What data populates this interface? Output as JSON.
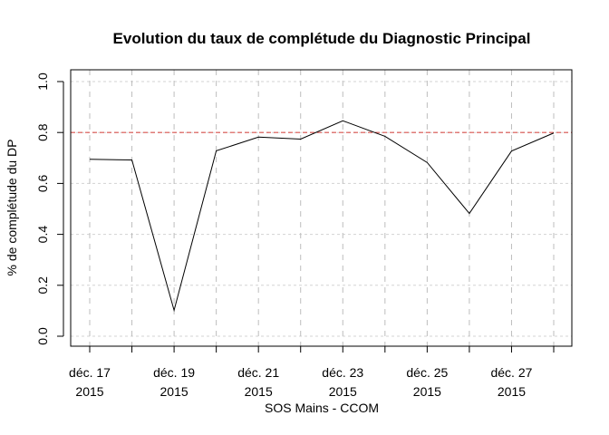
{
  "chart_data": {
    "type": "line",
    "title": "Evolution du taux de complétude du Diagnostic Principal",
    "xlabel": "SOS Mains - CCOM",
    "ylabel": "% de complétude du DP",
    "x": [
      17,
      18,
      19,
      20,
      21,
      22,
      23,
      24,
      25,
      26,
      27,
      28
    ],
    "x_ticks": [
      {
        "day": 17,
        "line1": "déc. 17",
        "line2": "2015"
      },
      {
        "day": 18,
        "line1": "",
        "line2": ""
      },
      {
        "day": 19,
        "line1": "déc. 19",
        "line2": "2015"
      },
      {
        "day": 20,
        "line1": "",
        "line2": ""
      },
      {
        "day": 21,
        "line1": "déc. 21",
        "line2": "2015"
      },
      {
        "day": 22,
        "line1": "",
        "line2": ""
      },
      {
        "day": 23,
        "line1": "déc. 23",
        "line2": "2015"
      },
      {
        "day": 24,
        "line1": "",
        "line2": ""
      },
      {
        "day": 25,
        "line1": "déc. 25",
        "line2": "2015"
      },
      {
        "day": 26,
        "line1": "",
        "line2": ""
      },
      {
        "day": 27,
        "line1": "déc. 27",
        "line2": "2015"
      },
      {
        "day": 28,
        "line1": "",
        "line2": ""
      }
    ],
    "series": [
      {
        "values": [
          0.695,
          0.692,
          0.102,
          0.728,
          0.782,
          0.774,
          0.846,
          0.785,
          0.682,
          0.482,
          0.727,
          0.798
        ],
        "color": "#000000"
      }
    ],
    "reference_line": {
      "y": 0.8,
      "color": "#d9534f",
      "style": "dashed"
    },
    "y_ticks": [
      "0.0",
      "0.2",
      "0.4",
      "0.6",
      "0.8",
      "1.0"
    ],
    "ylim": [
      0.0,
      1.0
    ],
    "grid": true
  }
}
